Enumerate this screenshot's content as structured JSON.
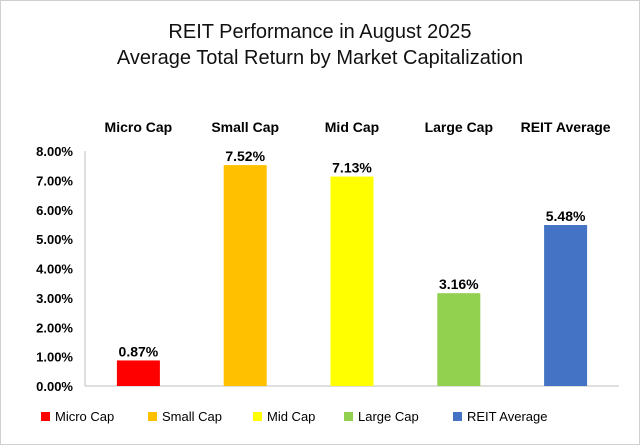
{
  "chart_data": {
    "type": "bar",
    "title": "REIT Performance in August 2025",
    "subtitle": "Average Total Return by Market Capitalization",
    "categories": [
      "Micro Cap",
      "Small Cap",
      "Mid Cap",
      "Large Cap",
      "REIT Average"
    ],
    "values": [
      0.87,
      7.52,
      7.13,
      3.16,
      5.48
    ],
    "data_labels": [
      "0.87%",
      "7.52%",
      "7.13%",
      "3.16%",
      "5.48%"
    ],
    "colors": [
      "#ff0000",
      "#ffc000",
      "#ffff00",
      "#92d050",
      "#4472c4"
    ],
    "ylim": [
      0,
      8
    ],
    "yticks": [
      "0.00%",
      "1.00%",
      "2.00%",
      "3.00%",
      "4.00%",
      "5.00%",
      "6.00%",
      "7.00%",
      "8.00%"
    ],
    "xlabel": "",
    "ylabel": "",
    "grid": false,
    "legend": {
      "position": "bottom",
      "entries": [
        "Micro Cap",
        "Small Cap",
        "Mid Cap",
        "Large Cap",
        "REIT Average"
      ]
    }
  }
}
